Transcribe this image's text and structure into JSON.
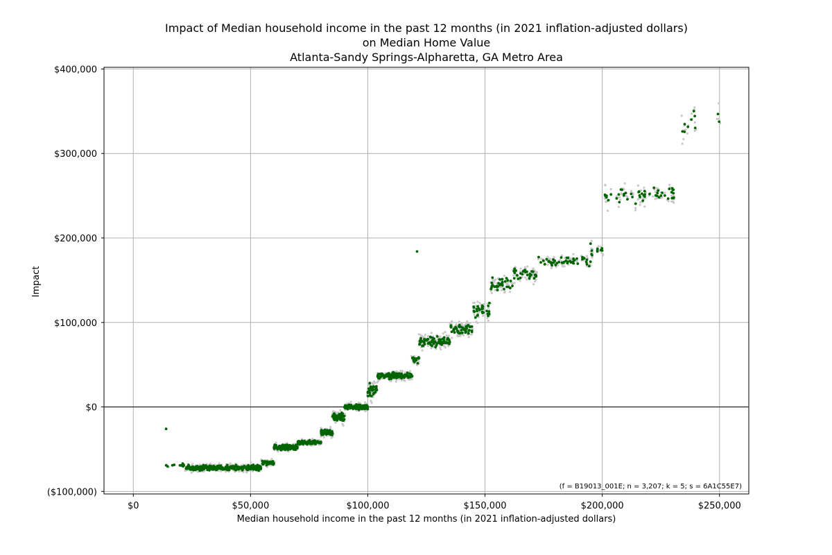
{
  "chart_data": {
    "type": "scatter",
    "title_lines": [
      "Impact of Median household income in the past 12 months (in 2021 inflation-adjusted dollars)",
      "on Median Home Value",
      "Atlanta-Sandy Springs-Alpharetta, GA Metro Area"
    ],
    "xlabel": "Median household income in the past 12 months (in 2021 inflation-adjusted dollars)",
    "ylabel": "Impact",
    "xlim": [
      -12500,
      262500
    ],
    "ylim": [
      -103000,
      402000
    ],
    "x_ticks": [
      0,
      50000,
      100000,
      150000,
      200000,
      250000
    ],
    "x_tick_labels": [
      "$0",
      "$50,000",
      "$100,000",
      "$150,000",
      "$200,000",
      "$250,000"
    ],
    "y_ticks": [
      -100000,
      0,
      100000,
      200000,
      300000,
      400000
    ],
    "y_tick_labels": [
      "($100,000)",
      "$0",
      "$100,000",
      "$200,000",
      "$300,000",
      "$400,000"
    ],
    "grid": true,
    "zero_line": 0,
    "annotation": "(f = B19013_001E; n = 3,207; k = 5; s = 6A1C55E7)",
    "colors": {
      "primary": "#006400",
      "spread": "#c8c8c8",
      "grid": "#b0b0b0"
    },
    "series": [
      {
        "values_by_segment": [
          {
            "x_range": [
              14000,
              22000
            ],
            "y_mean": -69000,
            "y_jitter": 2500,
            "count": 10
          },
          {
            "x_range": [
              22000,
              55000
            ],
            "y_mean": -72000,
            "y_jitter": 4000,
            "count": 260
          },
          {
            "x_range": [
              55000,
              60000
            ],
            "y_mean": -66000,
            "y_jitter": 3500,
            "count": 60
          },
          {
            "x_range": [
              60000,
              70000
            ],
            "y_mean": -48000,
            "y_jitter": 4000,
            "count": 110
          },
          {
            "x_range": [
              70000,
              80000
            ],
            "y_mean": -42000,
            "y_jitter": 3500,
            "count": 100
          },
          {
            "x_range": [
              80000,
              85000
            ],
            "y_mean": -30000,
            "y_jitter": 5000,
            "count": 60
          },
          {
            "x_range": [
              85000,
              90000
            ],
            "y_mean": -12000,
            "y_jitter": 7000,
            "count": 60
          },
          {
            "x_range": [
              90000,
              100000
            ],
            "y_mean": 0,
            "y_jitter": 4000,
            "count": 120
          },
          {
            "x_range": [
              100000,
              104000
            ],
            "y_mean": 20000,
            "y_jitter": 10000,
            "count": 30
          },
          {
            "x_range": [
              104000,
              119000
            ],
            "y_mean": 37000,
            "y_jitter": 5000,
            "count": 110
          },
          {
            "x_range": [
              119000,
              122000
            ],
            "y_mean": 56000,
            "y_jitter": 6000,
            "count": 15
          },
          {
            "x_range": [
              122000,
              135000
            ],
            "y_mean": 77000,
            "y_jitter": 9000,
            "count": 80
          },
          {
            "x_range": [
              135000,
              145000
            ],
            "y_mean": 93000,
            "y_jitter": 9000,
            "count": 45
          },
          {
            "x_range": [
              145000,
              152000
            ],
            "y_mean": 115000,
            "y_jitter": 12000,
            "count": 28
          },
          {
            "x_range": [
              152000,
              162000
            ],
            "y_mean": 145000,
            "y_jitter": 10000,
            "count": 32
          },
          {
            "x_range": [
              162000,
              172000
            ],
            "y_mean": 158000,
            "y_jitter": 10000,
            "count": 28
          },
          {
            "x_range": [
              172000,
              195000
            ],
            "y_mean": 172000,
            "y_jitter": 7000,
            "count": 45
          },
          {
            "x_range": [
              195000,
              201000
            ],
            "y_mean": 185000,
            "y_jitter": 10000,
            "count": 10
          },
          {
            "x_range": [
              201000,
              231000
            ],
            "y_mean": 250000,
            "y_jitter": 15000,
            "count": 48
          },
          {
            "x_range": [
              233000,
              250000
            ],
            "y_mean": 335000,
            "y_jitter": 18000,
            "count": 10
          }
        ],
        "outliers": [
          {
            "x": 14000,
            "y": -26000
          },
          {
            "x": 121000,
            "y": 184000
          }
        ]
      }
    ]
  }
}
